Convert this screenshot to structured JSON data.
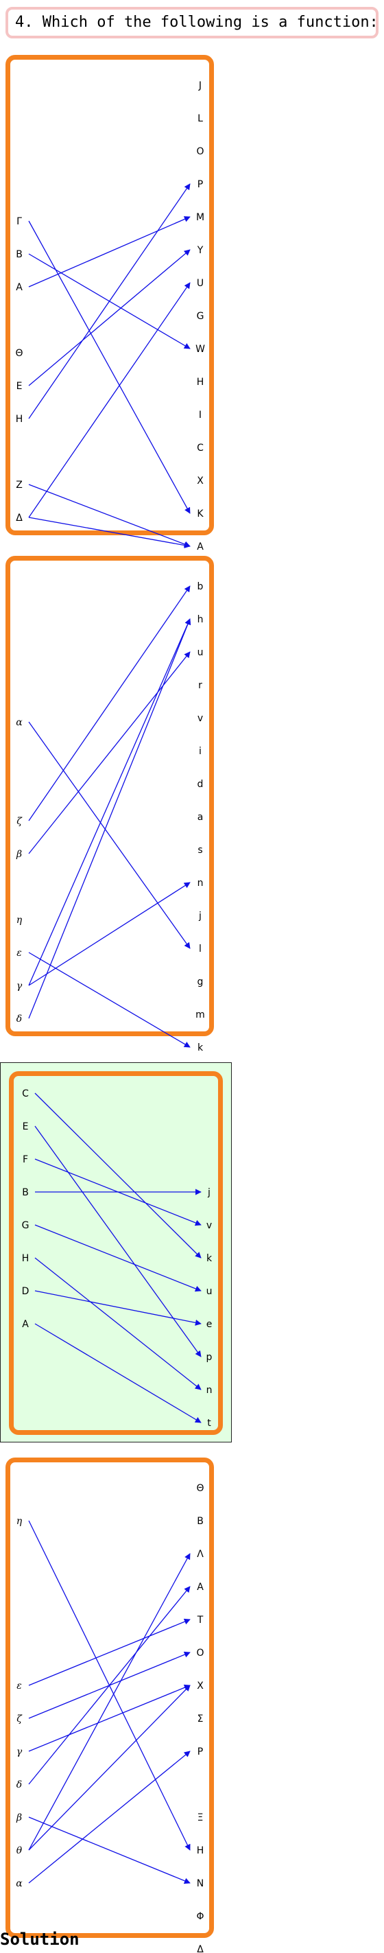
{
  "question": {
    "text": "4. Which of the following is a function:"
  },
  "solution_label": "Solution",
  "arrow_color": "#1010e6",
  "card_border_color": "#f5821f",
  "selected_background": "#e2ffe2",
  "options": [
    {
      "selected": false,
      "italic_left": false,
      "domain": [
        "Γ",
        "B",
        "A",
        "Θ",
        "E",
        "H",
        "Z",
        "Δ"
      ],
      "codomain": [
        "J",
        "L",
        "O",
        "P",
        "M",
        "Y",
        "U",
        "G",
        "W",
        "H",
        "I",
        "C",
        "X",
        "K",
        "A"
      ],
      "mapping": [
        [
          "Γ",
          "K"
        ],
        [
          "B",
          "W"
        ],
        [
          "A",
          "M"
        ],
        [
          "E",
          "Y"
        ],
        [
          "H",
          "P"
        ],
        [
          "Z",
          "A"
        ],
        [
          "Δ",
          "U"
        ],
        [
          "Δ",
          "A"
        ]
      ]
    },
    {
      "selected": false,
      "italic_left": true,
      "domain": [
        "α",
        "ζ",
        "β",
        "η",
        "ε",
        "γ",
        "δ"
      ],
      "codomain": [
        "b",
        "h",
        "u",
        "r",
        "v",
        "i",
        "d",
        "a",
        "s",
        "n",
        "j",
        "l",
        "g",
        "m",
        "k"
      ],
      "mapping": [
        [
          "α",
          "l"
        ],
        [
          "ζ",
          "b"
        ],
        [
          "β",
          "u"
        ],
        [
          "ε",
          "k"
        ],
        [
          "γ",
          "h"
        ],
        [
          "γ",
          "n"
        ],
        [
          "δ",
          "h"
        ]
      ]
    },
    {
      "selected": true,
      "italic_left": false,
      "domain": [
        "C",
        "E",
        "F",
        "B",
        "G",
        "H",
        "D",
        "A"
      ],
      "codomain": [
        "j",
        "v",
        "k",
        "u",
        "e",
        "p",
        "n",
        "t"
      ],
      "mapping": [
        [
          "C",
          "k"
        ],
        [
          "E",
          "p"
        ],
        [
          "F",
          "v"
        ],
        [
          "B",
          "j"
        ],
        [
          "G",
          "u"
        ],
        [
          "H",
          "n"
        ],
        [
          "D",
          "e"
        ],
        [
          "A",
          "t"
        ]
      ]
    },
    {
      "selected": false,
      "italic_left": true,
      "domain": [
        "η",
        "ε",
        "ζ",
        "γ",
        "δ",
        "β",
        "θ",
        "α"
      ],
      "codomain": [
        "Θ",
        "B",
        "Λ",
        "A",
        "T",
        "O",
        "X",
        "Σ",
        "P",
        "Ξ",
        "H",
        "N",
        "Φ",
        "Δ"
      ],
      "mapping": [
        [
          "η",
          "H"
        ],
        [
          "ε",
          "T"
        ],
        [
          "ζ",
          "O"
        ],
        [
          "γ",
          "X"
        ],
        [
          "δ",
          "A"
        ],
        [
          "β",
          "N"
        ],
        [
          "θ",
          "Λ"
        ],
        [
          "θ",
          "X"
        ],
        [
          "α",
          "P"
        ]
      ]
    }
  ]
}
